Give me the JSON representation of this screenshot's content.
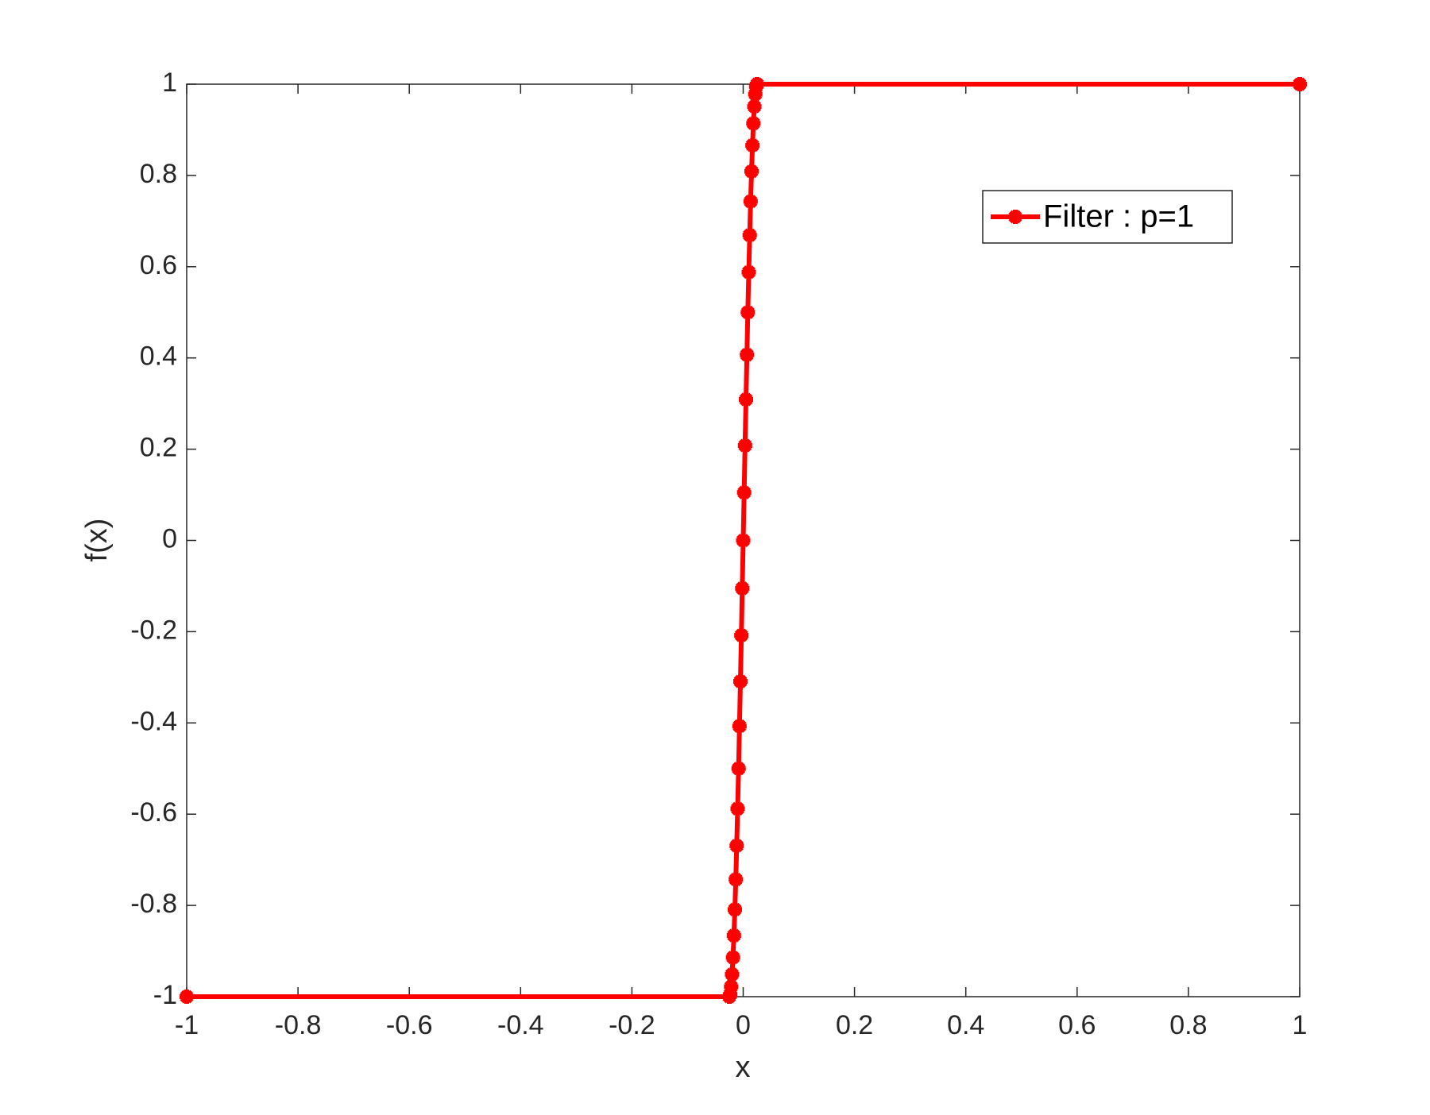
{
  "chart_data": {
    "type": "line",
    "xlabel": "x",
    "ylabel": "f(x)",
    "x": [
      -1,
      -0.025,
      -0.0233,
      -0.0217,
      -0.02,
      -0.0183,
      -0.0167,
      -0.015,
      -0.0133,
      -0.0117,
      -0.01,
      -0.0083,
      -0.0067,
      -0.005,
      -0.0033,
      -0.0017,
      0,
      0.0017,
      0.0033,
      0.005,
      0.0067,
      0.0083,
      0.01,
      0.0117,
      0.0133,
      0.015,
      0.0167,
      0.0183,
      0.02,
      0.0217,
      0.0233,
      0.025,
      1
    ],
    "series": [
      {
        "name": "Filter : p=1",
        "color": "#ff0000",
        "values": [
          -1,
          -1,
          -0.995,
          -0.978,
          -0.951,
          -0.914,
          -0.866,
          -0.809,
          -0.743,
          -0.669,
          -0.588,
          -0.5,
          -0.407,
          -0.309,
          -0.208,
          -0.105,
          0,
          0.105,
          0.208,
          0.309,
          0.407,
          0.5,
          0.588,
          0.669,
          0.743,
          0.809,
          0.866,
          0.914,
          0.951,
          0.978,
          0.995,
          1,
          1
        ]
      }
    ],
    "xlim": [
      -1,
      1
    ],
    "ylim": [
      -1,
      1
    ],
    "xticks": [
      -1,
      -0.8,
      -0.6,
      -0.4,
      -0.2,
      0,
      0.2,
      0.4,
      0.6,
      0.8,
      1
    ],
    "yticks": [
      -1,
      -0.8,
      -0.6,
      -0.4,
      -0.2,
      0,
      0.2,
      0.4,
      0.6,
      0.8,
      1
    ],
    "grid": false,
    "legend": "upper right"
  }
}
